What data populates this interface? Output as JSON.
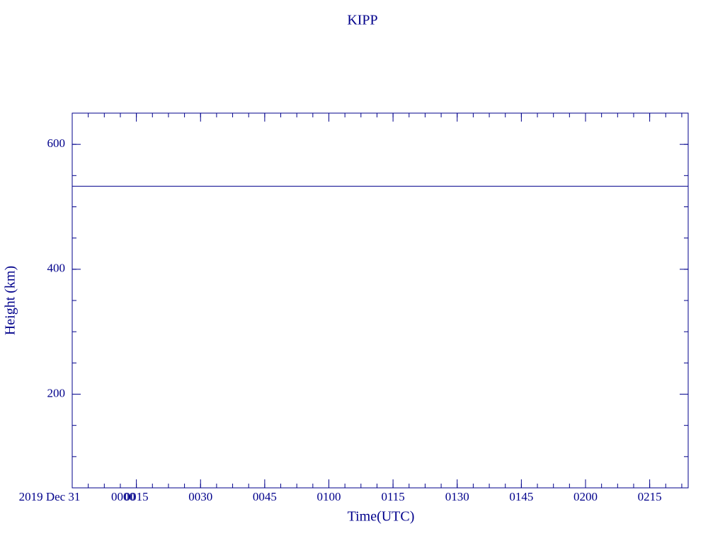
{
  "chart_data": {
    "type": "line",
    "title": "KIPP",
    "x_label": "Time(UTC)",
    "y_label": "Height (km)",
    "x_date_label": "2019 Dec 31",
    "x": [
      0,
      144
    ],
    "series": [
      {
        "color": "#00008b",
        "values": [
          533,
          533
        ]
      }
    ],
    "xlim": [
      0,
      144
    ],
    "xticks": [
      {
        "value": 0,
        "label": "0000"
      },
      {
        "value": 15,
        "label": "0015"
      },
      {
        "value": 30,
        "label": "0030"
      },
      {
        "value": 45,
        "label": "0045"
      },
      {
        "value": 60,
        "label": "0100"
      },
      {
        "value": 75,
        "label": "0115"
      },
      {
        "value": 90,
        "label": "0130"
      },
      {
        "value": 105,
        "label": "0145"
      },
      {
        "value": 120,
        "label": "0200"
      },
      {
        "value": 135,
        "label": "0215"
      }
    ],
    "ylim": [
      50,
      650
    ],
    "yticks": [
      200,
      400,
      600
    ],
    "color": "#00008b",
    "grid": false
  }
}
